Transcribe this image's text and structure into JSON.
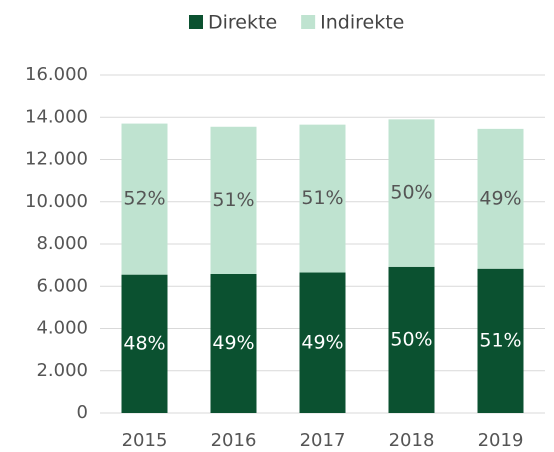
{
  "chart_data": {
    "type": "stacked_bar",
    "categories": [
      "2015",
      "2016",
      "2017",
      "2018",
      "2019"
    ],
    "series": [
      {
        "name": "Direkte",
        "color": "#0b5130",
        "values": [
          6550,
          6580,
          6650,
          6920,
          6830
        ],
        "labels": [
          "48%",
          "49%",
          "49%",
          "50%",
          "51%"
        ]
      },
      {
        "name": "Indirekte",
        "color": "#bfe3d0",
        "values": [
          7150,
          6970,
          7000,
          6980,
          6620
        ],
        "labels": [
          "52%",
          "51%",
          "51%",
          "50%",
          "49%"
        ]
      }
    ],
    "ylim": [
      0,
      16000
    ],
    "yticks": [
      0,
      {
        "value": 2000,
        "label": "2.000"
      },
      {
        "value": 4000,
        "label": "4.000"
      },
      {
        "value": 6000,
        "label": "6.000"
      },
      {
        "value": 8000,
        "label": "8.000"
      },
      {
        "value": 10000,
        "label": "10.000"
      },
      {
        "value": 12000,
        "label": "12.000"
      },
      {
        "value": 14000,
        "label": "14.000"
      },
      {
        "value": 16000,
        "label": "16.000"
      }
    ],
    "grid": true,
    "legend": "top"
  }
}
